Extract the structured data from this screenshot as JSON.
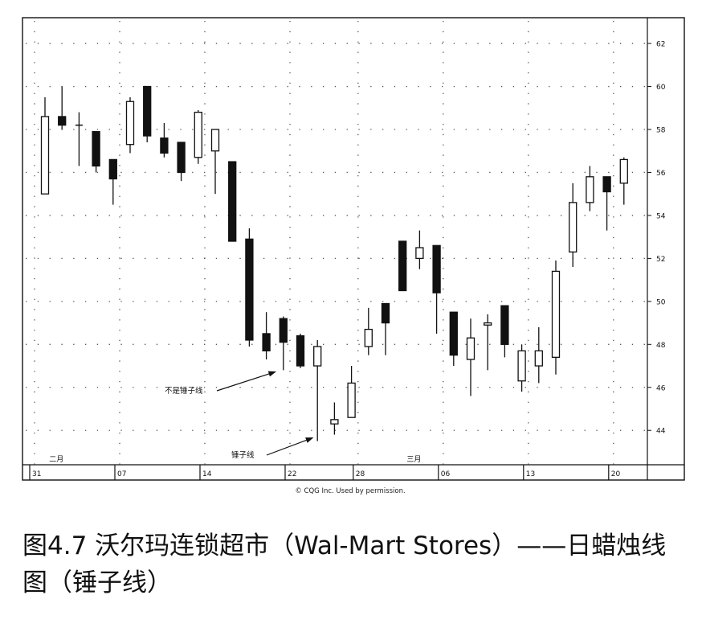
{
  "chart_data": {
    "type": "candlestick",
    "ylim": [
      42.4,
      63.2
    ],
    "y_ticks": [
      44,
      46,
      48,
      50,
      52,
      54,
      56,
      58,
      60,
      62
    ],
    "y_tick_labels": [
      "44",
      "46",
      "48",
      "50",
      "52",
      "54",
      "56",
      "58",
      "60",
      "62"
    ],
    "x_date_labels": [
      {
        "index": 0,
        "label": "31"
      },
      {
        "index": 5,
        "label": "07"
      },
      {
        "index": 10,
        "label": "14"
      },
      {
        "index": 15,
        "label": "22"
      },
      {
        "index": 19,
        "label": "28"
      },
      {
        "index": 24,
        "label": "06"
      },
      {
        "index": 29,
        "label": "13"
      },
      {
        "index": 34,
        "label": "20"
      }
    ],
    "month_labels": [
      {
        "index": 1,
        "label": "二月"
      },
      {
        "index": 22,
        "label": "三月"
      }
    ],
    "candles": [
      {
        "o": 55.0,
        "h": 59.5,
        "l": 55.0,
        "c": 58.6
      },
      {
        "o": 58.6,
        "h": 60.0,
        "l": 58.0,
        "c": 58.2
      },
      {
        "o": 58.2,
        "h": 58.8,
        "l": 56.3,
        "c": 58.2
      },
      {
        "o": 57.9,
        "h": 57.9,
        "l": 56.0,
        "c": 56.3
      },
      {
        "o": 56.6,
        "h": 56.6,
        "l": 54.5,
        "c": 55.7
      },
      {
        "o": 57.3,
        "h": 59.5,
        "l": 56.9,
        "c": 59.3
      },
      {
        "o": 60.0,
        "h": 60.0,
        "l": 57.4,
        "c": 57.7
      },
      {
        "o": 57.6,
        "h": 58.3,
        "l": 56.7,
        "c": 56.9
      },
      {
        "o": 57.4,
        "h": 57.4,
        "l": 55.6,
        "c": 56.0
      },
      {
        "o": 56.7,
        "h": 58.9,
        "l": 56.4,
        "c": 58.8
      },
      {
        "o": 57.0,
        "h": 58.0,
        "l": 55.0,
        "c": 58.0
      },
      {
        "o": 56.5,
        "h": 56.5,
        "l": 52.8,
        "c": 52.8
      },
      {
        "o": 52.9,
        "h": 53.4,
        "l": 47.9,
        "c": 48.2
      },
      {
        "o": 48.5,
        "h": 49.5,
        "l": 47.3,
        "c": 47.7
      },
      {
        "o": 49.2,
        "h": 49.3,
        "l": 46.8,
        "c": 48.1
      },
      {
        "o": 48.4,
        "h": 48.5,
        "l": 46.9,
        "c": 47.0
      },
      {
        "o": 47.0,
        "h": 48.2,
        "l": 43.5,
        "c": 47.9
      },
      {
        "o": 44.3,
        "h": 45.3,
        "l": 43.8,
        "c": 44.5
      },
      {
        "o": 44.6,
        "h": 47.0,
        "l": 44.6,
        "c": 46.2
      },
      {
        "o": 47.9,
        "h": 49.7,
        "l": 47.5,
        "c": 48.7
      },
      {
        "o": 49.9,
        "h": 49.9,
        "l": 47.5,
        "c": 49.0
      },
      {
        "o": 52.8,
        "h": 52.8,
        "l": 50.5,
        "c": 50.5
      },
      {
        "o": 52.0,
        "h": 53.3,
        "l": 51.5,
        "c": 52.5
      },
      {
        "o": 52.6,
        "h": 52.6,
        "l": 48.5,
        "c": 50.4
      },
      {
        "o": 49.5,
        "h": 49.5,
        "l": 47.0,
        "c": 47.5
      },
      {
        "o": 47.3,
        "h": 49.2,
        "l": 45.6,
        "c": 48.3
      },
      {
        "o": 48.9,
        "h": 49.4,
        "l": 46.8,
        "c": 49.0
      },
      {
        "o": 49.8,
        "h": 49.8,
        "l": 47.4,
        "c": 48.0
      },
      {
        "o": 46.3,
        "h": 48.0,
        "l": 45.8,
        "c": 47.7
      },
      {
        "o": 47.0,
        "h": 48.8,
        "l": 46.2,
        "c": 47.7
      },
      {
        "o": 47.4,
        "h": 51.9,
        "l": 46.6,
        "c": 51.4
      },
      {
        "o": 52.3,
        "h": 55.5,
        "l": 51.6,
        "c": 54.6
      },
      {
        "o": 54.6,
        "h": 56.3,
        "l": 54.2,
        "c": 55.8
      },
      {
        "o": 55.8,
        "h": 55.8,
        "l": 53.3,
        "c": 55.1
      },
      {
        "o": 55.5,
        "h": 56.7,
        "l": 54.5,
        "c": 56.6
      }
    ],
    "annotations": [
      {
        "text": "不是锤子线",
        "target_index": 14
      },
      {
        "text": "锤子线",
        "target_index": 16
      }
    ],
    "credit": "© CQG Inc. Used by permission."
  },
  "caption": {
    "text": "图4.7 沃尔玛连锁超市（Wal-Mart Stores）——日蜡烛线图（锤子线）"
  }
}
